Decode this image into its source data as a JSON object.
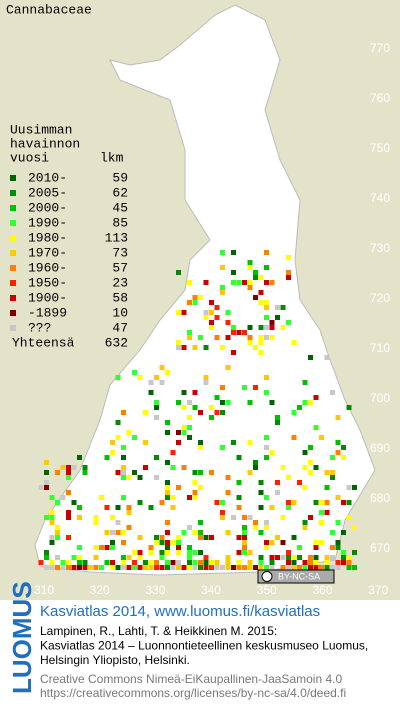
{
  "map": {
    "title": "Cannabaceae",
    "legend": {
      "header": [
        "Uusimman",
        "havainnon",
        "vuosi"
      ],
      "count_header": "lkm",
      "items": [
        {
          "label": "2010-",
          "count": 59,
          "color": "#006400"
        },
        {
          "label": "2005-",
          "count": 62,
          "color": "#008c00"
        },
        {
          "label": "2000-",
          "count": 45,
          "color": "#00c000"
        },
        {
          "label": "1990-",
          "count": 85,
          "color": "#30ff30"
        },
        {
          "label": "1980-",
          "count": 113,
          "color": "#ffff00"
        },
        {
          "label": "1970-",
          "count": 73,
          "color": "#ffc800"
        },
        {
          "label": "1960-",
          "count": 57,
          "color": "#ff8000"
        },
        {
          "label": "1950-",
          "count": 23,
          "color": "#ff2000"
        },
        {
          "label": "1900-",
          "count": 58,
          "color": "#c80000"
        },
        {
          "label": "-1899",
          "count": 10,
          "color": "#800000"
        },
        {
          "label": "???",
          "count": 47,
          "color": "#c8c8c8"
        }
      ],
      "total_label": "Yhteensä",
      "total": 632
    },
    "yticks": [
      670,
      680,
      690,
      700,
      710,
      720,
      730,
      740,
      750,
      760,
      770
    ],
    "xticks": [
      310,
      320,
      330,
      340,
      350,
      360,
      370
    ],
    "license_badge": "BY-NC-SA"
  },
  "footer": {
    "logo": "LUOMUS",
    "headline": "Kasviatlas 2014, www.luomus.fi/kasviatlas",
    "citation": [
      "Lampinen, R., Lahti, T. & Heikkinen M. 2015:",
      "Kasviatlas 2014 – Luonnontieteellinen keskusmuseo Luomus,",
      "Helsingin Yliopisto, Helsinki."
    ],
    "license": [
      "Creative Commons Nimeä-EiKaupallinen-JaaSamoin 4.0",
      "https://creativecommons.org/licenses/by-nc-sa/4.0/deed.fi"
    ]
  }
}
